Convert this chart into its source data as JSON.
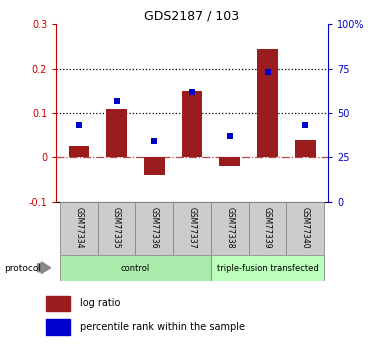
{
  "title": "GDS2187 / 103",
  "categories": [
    "GSM77334",
    "GSM77335",
    "GSM77336",
    "GSM77337",
    "GSM77338",
    "GSM77339",
    "GSM77340"
  ],
  "log_ratio": [
    0.025,
    0.11,
    -0.04,
    0.15,
    -0.02,
    0.245,
    0.04
  ],
  "percentile_rank_pct": [
    43,
    57,
    34,
    62,
    37,
    73,
    43
  ],
  "bar_color": "#9B1C1C",
  "square_color": "#0000CC",
  "ylim_left": [
    -0.1,
    0.3
  ],
  "ylim_right": [
    0,
    100
  ],
  "yticks_left": [
    -0.1,
    0.0,
    0.1,
    0.2,
    0.3
  ],
  "yticks_right": [
    0,
    25,
    50,
    75,
    100
  ],
  "ytick_labels_left": [
    "-0.1",
    "0",
    "0.1",
    "0.2",
    "0.3"
  ],
  "ytick_labels_right": [
    "0",
    "25",
    "50",
    "75",
    "100%"
  ],
  "hlines": [
    0.1,
    0.2
  ],
  "zero_line": 0.0,
  "groups": [
    {
      "label": "control",
      "start": 0,
      "end": 4,
      "color": "#AAEAAA"
    },
    {
      "label": "triple-fusion transfected",
      "start": 4,
      "end": 7,
      "color": "#BBFFBB"
    }
  ],
  "protocol_label": "protocol",
  "legend_items": [
    {
      "color": "#9B1C1C",
      "label": "log ratio"
    },
    {
      "color": "#0000CC",
      "label": "percentile rank within the sample"
    }
  ],
  "background_color": "#ffffff",
  "left_tick_color": "#CC0000",
  "right_tick_color": "#0000CC",
  "bar_width": 0.55
}
